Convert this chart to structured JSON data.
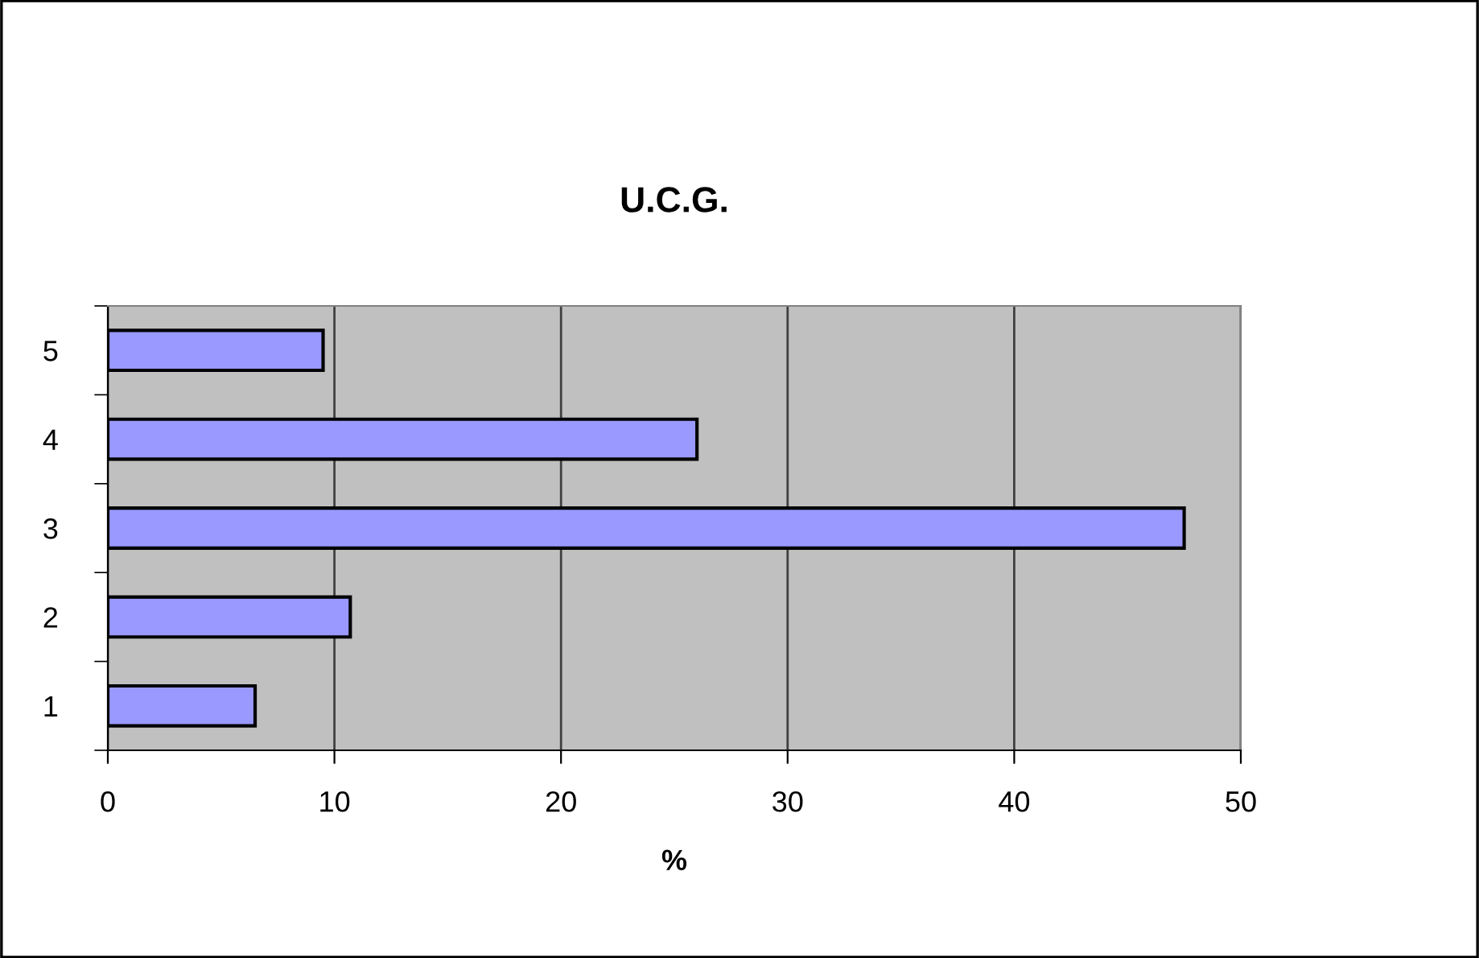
{
  "chart_data": {
    "type": "bar",
    "orientation": "horizontal",
    "title": "U.C.G.",
    "xlabel": "%",
    "categories": [
      "5",
      "4",
      "3",
      "2",
      "1"
    ],
    "values": [
      9.5,
      26.0,
      47.5,
      10.7,
      6.5
    ],
    "color": "#9999ff",
    "xlim": [
      0,
      50
    ],
    "xticks": [
      0,
      10,
      20,
      30,
      40,
      50
    ],
    "grid": "x"
  }
}
